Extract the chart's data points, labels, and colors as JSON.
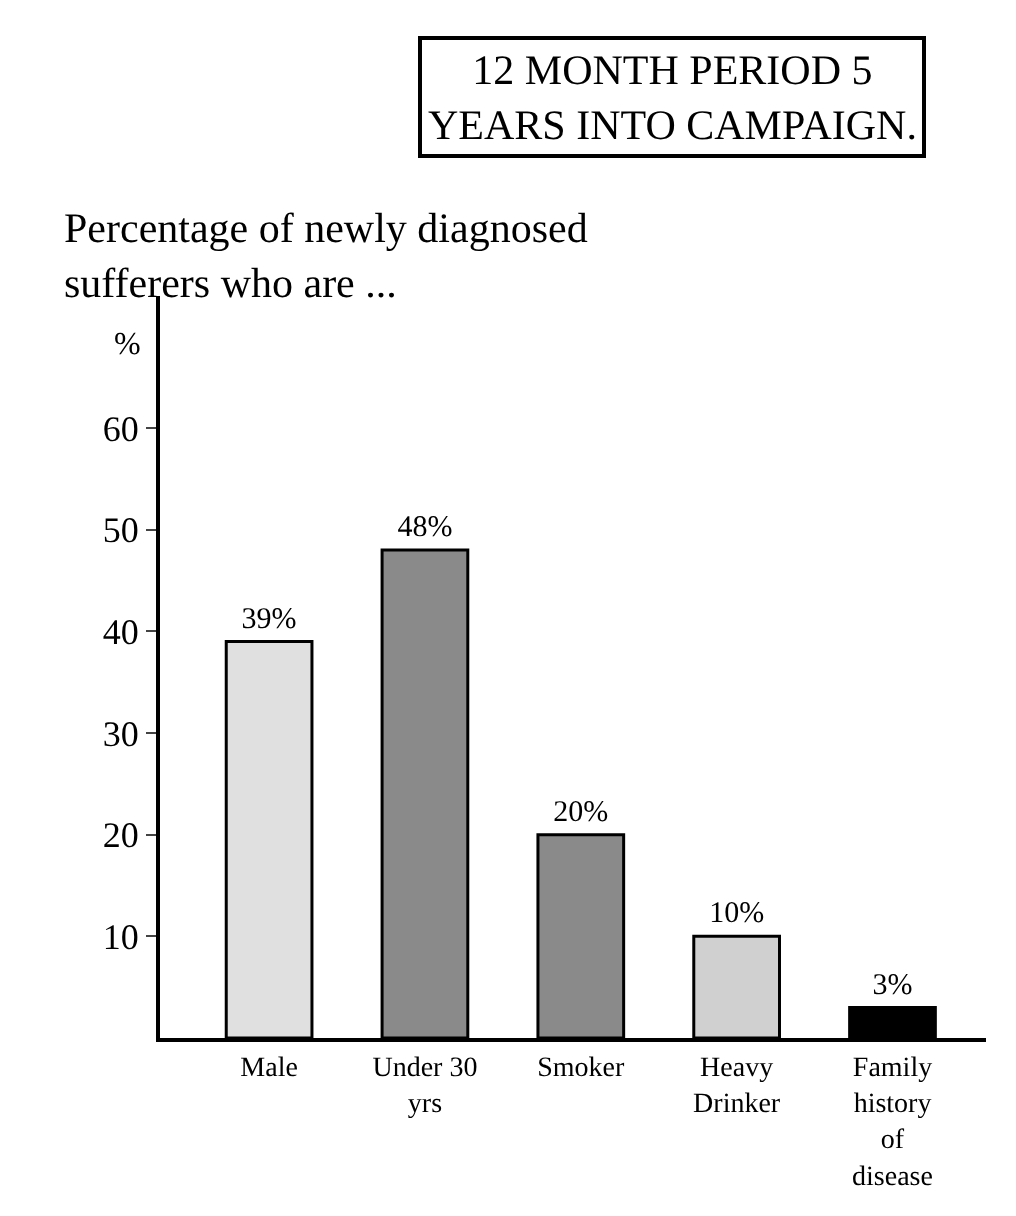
{
  "chart_data": {
    "type": "bar",
    "title": "12 MONTH PERIOD 5 YEARS INTO CAMPAIGN.",
    "subtitle": "Percentage of newly diagnosed sufferers who are ...",
    "ylabel": "%",
    "categories": [
      "Male",
      "Under 30 yrs",
      "Smoker",
      "Heavy Drinker",
      "Family history of disease"
    ],
    "values": [
      39,
      48,
      20,
      10,
      3
    ],
    "value_labels": [
      "39%",
      "48%",
      "20%",
      "10%",
      "3%"
    ],
    "colors": [
      "#e0e0e0",
      "#8a8a8a",
      "#8a8a8a",
      "#d0d0d0",
      "#000000"
    ],
    "ylim": [
      0,
      73
    ],
    "yticks": [
      10,
      20,
      30,
      40,
      50,
      60
    ],
    "legend": false
  }
}
